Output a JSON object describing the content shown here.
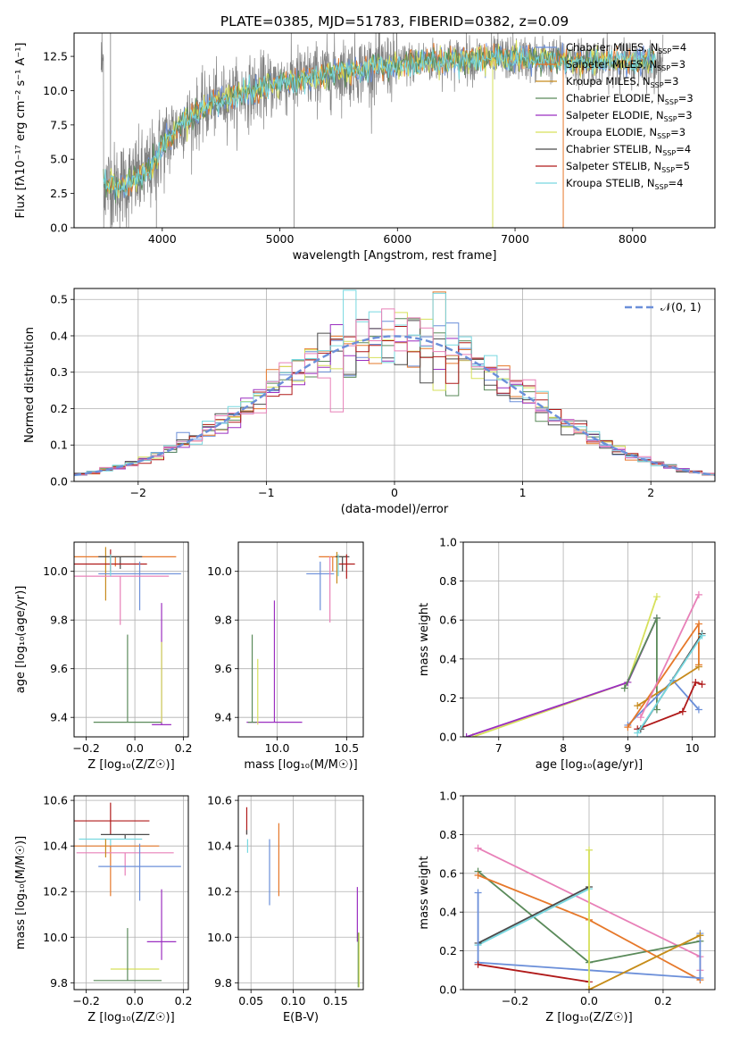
{
  "figure": {
    "title": "PLATE=0385, MJD=51783, FIBERID=0382, z=0.09"
  },
  "colors": {
    "Chabrier MILES": "#6b8fd9",
    "Salpeter MILES": "#e6782a",
    "Kroupa MILES": "#c78a1c",
    "Chabrier ELODIE": "#5a8a5a",
    "Salpeter ELODIE": "#9b2fc0",
    "Kroupa ELODIE": "#d6e05a",
    "Chabrier STELIB": "#4a4a4a",
    "Salpeter STELIB": "#b01a1a",
    "Kroupa STELIB": "#77d8e0",
    "data": "#7f7f7f",
    "pink": "#e880b8",
    "gaussian": "#6b8fd9"
  },
  "chart_data": [
    {
      "id": "spectrum",
      "type": "line",
      "xlabel": "wavelength [Angstrom, rest frame]",
      "ylabel": "Flux [fλ10⁻¹⁷ erg cm⁻² s⁻¹ A⁻¹]",
      "xlim": [
        3250,
        8700
      ],
      "ylim": [
        0,
        14.2
      ],
      "xticks": [
        4000,
        5000,
        6000,
        7000,
        8000
      ],
      "yticks": [
        0.0,
        2.5,
        5.0,
        7.5,
        10.0,
        12.5
      ],
      "legend_position": "top-right",
      "legend": [
        {
          "label": "Chabrier MILES, N",
          "sub": "SSP",
          "suffix": "=4",
          "color": "#6b8fd9"
        },
        {
          "label": "Salpeter MILES, N",
          "sub": "SSP",
          "suffix": "=3",
          "color": "#e6782a"
        },
        {
          "label": "Kroupa MILES, N",
          "sub": "SSP",
          "suffix": "=3",
          "color": "#c78a1c"
        },
        {
          "label": "Chabrier ELODIE, N",
          "sub": "SSP",
          "suffix": "=3",
          "color": "#5a8a5a"
        },
        {
          "label": "Salpeter ELODIE, N",
          "sub": "SSP",
          "suffix": "=3",
          "color": "#9b2fc0"
        },
        {
          "label": "Kroupa ELODIE, N",
          "sub": "SSP",
          "suffix": "=3",
          "color": "#d6e05a"
        },
        {
          "label": "Chabrier STELIB, N",
          "sub": "SSP",
          "suffix": "=4",
          "color": "#4a4a4a"
        },
        {
          "label": "Salpeter STELIB, N",
          "sub": "SSP",
          "suffix": "=5",
          "color": "#b01a1a"
        },
        {
          "label": "Kroupa STELIB, N",
          "sub": "SSP",
          "suffix": "=4",
          "color": "#77d8e0"
        }
      ],
      "continuum": {
        "x": [
          3500,
          3600,
          3700,
          3800,
          3900,
          4000,
          4100,
          4200,
          4300,
          4400,
          4600,
          4800,
          5000,
          5200,
          5400,
          5600,
          5800,
          6000,
          6200,
          6400,
          6600,
          6800,
          7000,
          7200,
          7400,
          7600,
          7800,
          8000,
          8200
        ],
        "y": [
          3.2,
          3.0,
          3.3,
          3.6,
          4.2,
          6.0,
          7.0,
          7.8,
          8.3,
          9.0,
          9.6,
          10.1,
          10.6,
          10.9,
          11.2,
          11.5,
          11.7,
          11.9,
          12.1,
          12.2,
          12.3,
          12.35,
          12.4,
          12.3,
          12.2,
          12.1,
          12.1,
          12.1,
          12.0
        ]
      }
    },
    {
      "id": "residuals",
      "type": "bar",
      "xlabel": "(data-model)/error",
      "ylabel": "Normed distribution",
      "xlim": [
        -2.5,
        2.5
      ],
      "ylim": [
        0,
        0.53
      ],
      "xticks": [
        -2,
        -1,
        0,
        1,
        2
      ],
      "yticks": [
        0.0,
        0.1,
        0.2,
        0.3,
        0.4,
        0.5
      ],
      "legend": [
        {
          "label": "𝒩(0, 1)"
        }
      ],
      "bin_width": 0.1,
      "reference": {
        "type": "gaussian",
        "mean": 0,
        "sigma": 1
      }
    },
    {
      "id": "age-vs-Z",
      "type": "scatter",
      "xlabel": "Z [log₁₀(Z/Z☉)]",
      "ylabel": "age  [log₁₀(age/yr)]",
      "xlim": [
        -0.25,
        0.22
      ],
      "ylim": [
        9.32,
        10.12
      ],
      "xticks": [
        -0.2,
        0.0,
        0.2
      ],
      "yticks": [
        9.4,
        9.6,
        9.8,
        10.0
      ],
      "errorbars": [
        {
          "color": "#e6782a",
          "x": -0.08,
          "y": 10.06,
          "xerr": 0.25,
          "yerr_lo": 0.04,
          "yerr_hi": 0.0
        },
        {
          "color": "#c78a1c",
          "x": -0.12,
          "y": 10.0,
          "xerr": 0.0,
          "yerr_lo": 0.12,
          "yerr_hi": 0.1
        },
        {
          "color": "#4a4a4a",
          "x": -0.06,
          "y": 10.06,
          "xerr": 0.09,
          "yerr_lo": 0.05,
          "yerr_hi": 0.0
        },
        {
          "color": "#b01a1a",
          "x": -0.1,
          "y": 10.03,
          "xerr": 0.15,
          "yerr_lo": 0.03,
          "yerr_hi": 0.06
        },
        {
          "color": "#6b8fd9",
          "x": 0.02,
          "y": 9.99,
          "xerr": 0.17,
          "yerr_lo": 0.15,
          "yerr_hi": 0.05
        },
        {
          "color": "#e880b8",
          "x": -0.06,
          "y": 9.98,
          "xerr": 0.2,
          "yerr_lo": 0.2,
          "yerr_hi": 0.0
        },
        {
          "color": "#77d8e0",
          "x": -0.1,
          "y": 10.04,
          "xerr": 0.0,
          "yerr_lo": 0.06,
          "yerr_hi": 0.03
        },
        {
          "color": "#9b2fc0",
          "x": 0.11,
          "y": 9.37,
          "xerr": 0.04,
          "yerr_lo": 0.0,
          "yerr_hi": 0.5
        },
        {
          "color": "#5a8a5a",
          "x": -0.03,
          "y": 9.38,
          "xerr": 0.14,
          "yerr_lo": 0.0,
          "yerr_hi": 0.36
        },
        {
          "color": "#d6e05a",
          "x": 0.11,
          "y": 9.38,
          "xerr": 0.0,
          "yerr_lo": 0.0,
          "yerr_hi": 0.33
        }
      ]
    },
    {
      "id": "age-vs-mass",
      "type": "scatter",
      "xlabel": "mass [log₁₀(M/M☉)]",
      "ylabel": "",
      "xlim": [
        9.72,
        10.62
      ],
      "ylim": [
        9.32,
        10.12
      ],
      "xticks": [
        10.0,
        10.5
      ],
      "yticks": [
        9.4,
        9.6,
        9.8,
        10.0
      ],
      "errorbars": [
        {
          "color": "#e6782a",
          "x": 10.4,
          "y": 10.06,
          "xerr": 0.1,
          "yerr_lo": 0.06,
          "yerr_hi": 0.0
        },
        {
          "color": "#c78a1c",
          "x": 10.43,
          "y": 10.03,
          "xerr": 0.0,
          "yerr_lo": 0.08,
          "yerr_hi": 0.05
        },
        {
          "color": "#4a4a4a",
          "x": 10.47,
          "y": 10.06,
          "xerr": 0.05,
          "yerr_lo": 0.06,
          "yerr_hi": 0.0
        },
        {
          "color": "#b01a1a",
          "x": 10.5,
          "y": 10.03,
          "xerr": 0.06,
          "yerr_lo": 0.06,
          "yerr_hi": 0.04
        },
        {
          "color": "#6b8fd9",
          "x": 10.31,
          "y": 9.99,
          "xerr": 0.1,
          "yerr_lo": 0.15,
          "yerr_hi": 0.05
        },
        {
          "color": "#e880b8",
          "x": 10.38,
          "y": 9.99,
          "xerr": 0.0,
          "yerr_lo": 0.2,
          "yerr_hi": 0.07
        },
        {
          "color": "#77d8e0",
          "x": 10.44,
          "y": 10.04,
          "xerr": 0.0,
          "yerr_lo": 0.06,
          "yerr_hi": 0.03
        },
        {
          "color": "#9b2fc0",
          "x": 9.98,
          "y": 9.38,
          "xerr": 0.2,
          "yerr_lo": 0.0,
          "yerr_hi": 0.5
        },
        {
          "color": "#5a8a5a",
          "x": 9.82,
          "y": 9.38,
          "xerr": 0.03,
          "yerr_lo": 0.0,
          "yerr_hi": 0.36
        },
        {
          "color": "#d6e05a",
          "x": 9.86,
          "y": 9.37,
          "xerr": 0.0,
          "yerr_lo": 0.0,
          "yerr_hi": 0.27
        }
      ]
    },
    {
      "id": "weight-vs-age",
      "type": "line",
      "xlabel": "age  [log₁₀(age/yr)]",
      "ylabel": "mass weight",
      "xlim": [
        6.45,
        10.35
      ],
      "ylim": [
        0,
        1.0
      ],
      "xticks": [
        7,
        8,
        9,
        10
      ],
      "yticks": [
        0.0,
        0.2,
        0.4,
        0.6,
        0.8,
        1.0
      ],
      "series": [
        {
          "color": "#d6e05a",
          "x": [
            6.6,
            9.0,
            9.45
          ],
          "y": [
            0.0,
            0.28,
            0.72
          ]
        },
        {
          "color": "#9b2fc0",
          "x": [
            6.5,
            9.0,
            9.45
          ],
          "y": [
            0.0,
            0.28,
            0.61
          ]
        },
        {
          "color": "#5a8a5a",
          "x": [
            8.95,
            9.45,
            9.45
          ],
          "y": [
            0.25,
            0.61,
            0.14
          ]
        },
        {
          "color": "#6b8fd9",
          "x": [
            9.0,
            9.7,
            10.1
          ],
          "y": [
            0.06,
            0.29,
            0.14
          ]
        },
        {
          "color": "#e6782a",
          "x": [
            9.0,
            10.1,
            10.1
          ],
          "y": [
            0.05,
            0.58,
            0.37
          ]
        },
        {
          "color": "#c78a1c",
          "x": [
            9.15,
            10.1
          ],
          "y": [
            0.16,
            0.36
          ]
        },
        {
          "color": "#e880b8",
          "x": [
            9.2,
            10.1
          ],
          "y": [
            0.1,
            0.73
          ]
        },
        {
          "color": "#b01a1a",
          "x": [
            9.15,
            9.85,
            10.05,
            10.15
          ],
          "y": [
            0.04,
            0.13,
            0.28,
            0.27
          ]
        },
        {
          "color": "#4a4a4a",
          "x": [
            9.2,
            10.15
          ],
          "y": [
            0.04,
            0.53
          ]
        },
        {
          "color": "#77d8e0",
          "x": [
            9.15,
            10.15
          ],
          "y": [
            0.02,
            0.52
          ]
        }
      ]
    },
    {
      "id": "mass-vs-Z",
      "type": "scatter",
      "xlabel": "Z [log₁₀(Z/Z☉)]",
      "ylabel": "mass [log₁₀(M/M☉)]",
      "xlim": [
        -0.25,
        0.22
      ],
      "ylim": [
        9.77,
        10.62
      ],
      "xticks": [
        -0.2,
        0.0,
        0.2
      ],
      "yticks": [
        9.8,
        10.0,
        10.2,
        10.4,
        10.6
      ],
      "errorbars": [
        {
          "color": "#b01a1a",
          "x": -0.1,
          "y": 10.51,
          "xerr": 0.16,
          "yerr_lo": 0.06,
          "yerr_hi": 0.08
        },
        {
          "color": "#4a4a4a",
          "x": -0.04,
          "y": 10.45,
          "xerr": 0.1,
          "yerr_lo": 0.02,
          "yerr_hi": 0.0
        },
        {
          "color": "#77d8e0",
          "x": -0.1,
          "y": 10.43,
          "xerr": 0.13,
          "yerr_lo": 0.04,
          "yerr_hi": 0.0
        },
        {
          "color": "#e6782a",
          "x": -0.1,
          "y": 10.4,
          "xerr": 0.2,
          "yerr_lo": 0.22,
          "yerr_hi": 0.0
        },
        {
          "color": "#e880b8",
          "x": -0.04,
          "y": 10.37,
          "xerr": 0.2,
          "yerr_lo": 0.1,
          "yerr_hi": 0.0
        },
        {
          "color": "#6b8fd9",
          "x": 0.02,
          "y": 10.31,
          "xerr": 0.17,
          "yerr_lo": 0.15,
          "yerr_hi": 0.1
        },
        {
          "color": "#9b2fc0",
          "x": 0.11,
          "y": 9.98,
          "xerr": 0.06,
          "yerr_lo": 0.08,
          "yerr_hi": 0.23
        },
        {
          "color": "#d6e05a",
          "x": 0.0,
          "y": 9.86,
          "xerr": 0.1,
          "yerr_lo": 0.0,
          "yerr_hi": 0.0
        },
        {
          "color": "#5a8a5a",
          "x": -0.03,
          "y": 9.81,
          "xerr": 0.14,
          "yerr_lo": 0.0,
          "yerr_hi": 0.23
        },
        {
          "color": "#c78a1c",
          "x": -0.12,
          "y": 10.43,
          "xerr": 0.0,
          "yerr_lo": 0.08,
          "yerr_hi": 0.0
        }
      ]
    },
    {
      "id": "mass-vs-ebv",
      "type": "scatter",
      "xlabel": "E(B-V)",
      "ylabel": "",
      "xlim": [
        0.035,
        0.183
      ],
      "ylim": [
        9.77,
        10.62
      ],
      "xticks": [
        0.05,
        0.1,
        0.15
      ],
      "yticks": [
        9.8,
        10.0,
        10.2,
        10.4,
        10.6
      ],
      "errorbars": [
        {
          "color": "#b01a1a",
          "x": 0.045,
          "y": 10.51,
          "xerr": 0.0,
          "yerr_lo": 0.06,
          "yerr_hi": 0.06
        },
        {
          "color": "#77d8e0",
          "x": 0.046,
          "y": 10.43,
          "xerr": 0.0,
          "yerr_lo": 0.06,
          "yerr_hi": 0.0
        },
        {
          "color": "#4a4a4a",
          "x": 0.045,
          "y": 10.47,
          "xerr": 0.0,
          "yerr_lo": 0.02,
          "yerr_hi": 0.0
        },
        {
          "color": "#e6782a",
          "x": 0.083,
          "y": 10.4,
          "xerr": 0.0,
          "yerr_lo": 0.22,
          "yerr_hi": 0.1
        },
        {
          "color": "#6b8fd9",
          "x": 0.072,
          "y": 10.3,
          "xerr": 0.0,
          "yerr_lo": 0.16,
          "yerr_hi": 0.13
        },
        {
          "color": "#9b2fc0",
          "x": 0.176,
          "y": 10.1,
          "xerr": 0.0,
          "yerr_lo": 0.12,
          "yerr_hi": 0.12
        },
        {
          "color": "#5a8a5a",
          "x": 0.177,
          "y": 9.9,
          "xerr": 0.0,
          "yerr_lo": 0.12,
          "yerr_hi": 0.12
        },
        {
          "color": "#d6e05a",
          "x": 0.178,
          "y": 9.9,
          "xerr": 0.0,
          "yerr_lo": 0.12,
          "yerr_hi": 0.12
        }
      ]
    },
    {
      "id": "weight-vs-Z",
      "type": "line",
      "xlabel": "Z [log₁₀(Z/Z☉)]",
      "ylabel": "mass weight",
      "xlim": [
        -0.34,
        0.34
      ],
      "ylim": [
        0,
        1.0
      ],
      "xticks": [
        -0.2,
        0.0,
        0.2
      ],
      "yticks": [
        0.0,
        0.2,
        0.4,
        0.6,
        0.8,
        1.0
      ],
      "series": [
        {
          "color": "#e880b8",
          "x": [
            -0.3,
            0.3,
            0.3
          ],
          "y": [
            0.73,
            0.17,
            0.1
          ]
        },
        {
          "color": "#5a8a5a",
          "x": [
            -0.3,
            0.0,
            0.3
          ],
          "y": [
            0.61,
            0.14,
            0.25
          ]
        },
        {
          "color": "#e6782a",
          "x": [
            -0.3,
            0.0,
            0.3
          ],
          "y": [
            0.59,
            0.36,
            0.05
          ]
        },
        {
          "color": "#77d8e0",
          "x": [
            -0.3,
            0.0
          ],
          "y": [
            0.23,
            0.52
          ]
        },
        {
          "color": "#4a4a4a",
          "x": [
            -0.3,
            0.0
          ],
          "y": [
            0.24,
            0.53
          ]
        },
        {
          "color": "#6b8fd9",
          "x": [
            -0.3,
            -0.3,
            0.0,
            0.3,
            0.3
          ],
          "y": [
            0.5,
            0.14,
            0.1,
            0.06,
            0.29
          ]
        },
        {
          "color": "#b01a1a",
          "x": [
            -0.3,
            0.0
          ],
          "y": [
            0.13,
            0.04
          ]
        },
        {
          "color": "#d6e05a",
          "x": [
            0.0,
            0.0,
            0.3
          ],
          "y": [
            0.72,
            0.0,
            0.28
          ]
        },
        {
          "color": "#c78a1c",
          "x": [
            0.0,
            0.3
          ],
          "y": [
            0.0,
            0.28
          ]
        }
      ]
    }
  ]
}
